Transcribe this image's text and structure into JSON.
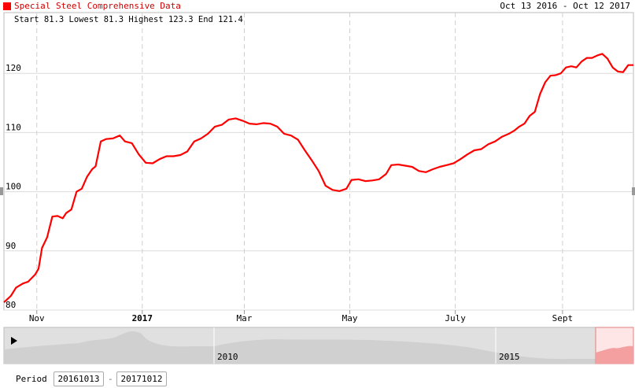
{
  "legend": {
    "label": "Special Steel Comprehensive Data",
    "color": "#ff0000"
  },
  "date_range": "Oct 13 2016 - Oct 12 2017",
  "stats_text": "Start 81.3 Lowest 81.3 Highest 123.3 End 121.4",
  "period": {
    "label": "Period :",
    "start": "20161013",
    "separator": "-",
    "end": "20171012"
  },
  "navigator": {
    "labels": [
      "2010",
      "2015"
    ],
    "play_icon": "play-icon",
    "play_color": "#000000"
  },
  "chart_data": {
    "type": "line",
    "title": "",
    "xlabel": "",
    "ylabel": "",
    "x_range": [
      "2016-10-13",
      "2017-10-12"
    ],
    "ylim": [
      80,
      128
    ],
    "grid": true,
    "y_ticks": [
      {
        "value": 120,
        "label": "120"
      },
      {
        "value": 110,
        "label": "110"
      },
      {
        "value": 100,
        "label": "100"
      },
      {
        "value": 90,
        "label": "90"
      },
      {
        "value": 80,
        "label": "80"
      }
    ],
    "x_ticks": [
      {
        "x": "2016-11-01",
        "label": "Nov",
        "bold": false
      },
      {
        "x": "2017-01-01",
        "label": "2017",
        "bold": true
      },
      {
        "x": "2017-03-01",
        "label": "Mar",
        "bold": false
      },
      {
        "x": "2017-05-01",
        "label": "May",
        "bold": false
      },
      {
        "x": "2017-07-01",
        "label": "July",
        "bold": false
      },
      {
        "x": "2017-09-01",
        "label": "Sept",
        "bold": false
      }
    ],
    "series": [
      {
        "color": "#ff0000",
        "points": [
          [
            "2016-10-13",
            81.3
          ],
          [
            "2016-10-17",
            82.4
          ],
          [
            "2016-10-20",
            83.8
          ],
          [
            "2016-10-24",
            84.5
          ],
          [
            "2016-10-27",
            84.8
          ],
          [
            "2016-10-31",
            86.0
          ],
          [
            "2016-11-02",
            87.0
          ],
          [
            "2016-11-04",
            90.5
          ],
          [
            "2016-11-07",
            92.3
          ],
          [
            "2016-11-10",
            95.8
          ],
          [
            "2016-11-13",
            95.9
          ],
          [
            "2016-11-16",
            95.5
          ],
          [
            "2016-11-18",
            96.4
          ],
          [
            "2016-11-21",
            97.0
          ],
          [
            "2016-11-24",
            100.0
          ],
          [
            "2016-11-27",
            100.5
          ],
          [
            "2016-11-30",
            102.5
          ],
          [
            "2016-12-03",
            103.8
          ],
          [
            "2016-12-05",
            104.3
          ],
          [
            "2016-12-08",
            108.5
          ],
          [
            "2016-12-11",
            108.9
          ],
          [
            "2016-12-15",
            109.0
          ],
          [
            "2016-12-19",
            109.5
          ],
          [
            "2016-12-22",
            108.5
          ],
          [
            "2016-12-26",
            108.2
          ],
          [
            "2016-12-30",
            106.3
          ],
          [
            "2017-01-03",
            104.9
          ],
          [
            "2017-01-07",
            104.8
          ],
          [
            "2017-01-11",
            105.5
          ],
          [
            "2017-01-15",
            106.0
          ],
          [
            "2017-01-19",
            106.0
          ],
          [
            "2017-01-23",
            106.2
          ],
          [
            "2017-01-27",
            106.8
          ],
          [
            "2017-01-31",
            108.5
          ],
          [
            "2017-02-04",
            109.0
          ],
          [
            "2017-02-08",
            109.8
          ],
          [
            "2017-02-12",
            111.0
          ],
          [
            "2017-02-16",
            111.3
          ],
          [
            "2017-02-20",
            112.2
          ],
          [
            "2017-02-24",
            112.4
          ],
          [
            "2017-02-28",
            112.0
          ],
          [
            "2017-03-04",
            111.5
          ],
          [
            "2017-03-08",
            111.4
          ],
          [
            "2017-03-12",
            111.6
          ],
          [
            "2017-03-16",
            111.5
          ],
          [
            "2017-03-20",
            111.0
          ],
          [
            "2017-03-24",
            109.8
          ],
          [
            "2017-03-28",
            109.5
          ],
          [
            "2017-04-01",
            108.8
          ],
          [
            "2017-04-05",
            107.0
          ],
          [
            "2017-04-09",
            105.3
          ],
          [
            "2017-04-13",
            103.5
          ],
          [
            "2017-04-17",
            101.0
          ],
          [
            "2017-04-21",
            100.3
          ],
          [
            "2017-04-25",
            100.1
          ],
          [
            "2017-04-29",
            100.5
          ],
          [
            "2017-05-02",
            102.0
          ],
          [
            "2017-05-06",
            102.1
          ],
          [
            "2017-05-10",
            101.8
          ],
          [
            "2017-05-14",
            101.9
          ],
          [
            "2017-05-18",
            102.1
          ],
          [
            "2017-05-22",
            103.0
          ],
          [
            "2017-05-25",
            104.5
          ],
          [
            "2017-05-29",
            104.6
          ],
          [
            "2017-06-02",
            104.4
          ],
          [
            "2017-06-06",
            104.2
          ],
          [
            "2017-06-10",
            103.5
          ],
          [
            "2017-06-14",
            103.3
          ],
          [
            "2017-06-18",
            103.8
          ],
          [
            "2017-06-22",
            104.2
          ],
          [
            "2017-06-26",
            104.5
          ],
          [
            "2017-06-30",
            104.8
          ],
          [
            "2017-07-04",
            105.5
          ],
          [
            "2017-07-08",
            106.3
          ],
          [
            "2017-07-12",
            107.0
          ],
          [
            "2017-07-16",
            107.2
          ],
          [
            "2017-07-20",
            108.0
          ],
          [
            "2017-07-24",
            108.5
          ],
          [
            "2017-07-28",
            109.3
          ],
          [
            "2017-08-01",
            109.8
          ],
          [
            "2017-08-04",
            110.3
          ],
          [
            "2017-08-07",
            111.0
          ],
          [
            "2017-08-10",
            111.5
          ],
          [
            "2017-08-13",
            112.8
          ],
          [
            "2017-08-16",
            113.5
          ],
          [
            "2017-08-19",
            116.5
          ],
          [
            "2017-08-22",
            118.5
          ],
          [
            "2017-08-25",
            119.6
          ],
          [
            "2017-08-28",
            119.7
          ],
          [
            "2017-08-31",
            120.0
          ],
          [
            "2017-09-03",
            121.0
          ],
          [
            "2017-09-06",
            121.2
          ],
          [
            "2017-09-09",
            121.0
          ],
          [
            "2017-09-12",
            122.0
          ],
          [
            "2017-09-15",
            122.6
          ],
          [
            "2017-09-18",
            122.6
          ],
          [
            "2017-09-21",
            123.0
          ],
          [
            "2017-09-24",
            123.3
          ],
          [
            "2017-09-27",
            122.5
          ],
          [
            "2017-09-30",
            121.0
          ],
          [
            "2017-10-03",
            120.3
          ],
          [
            "2017-10-06",
            120.2
          ],
          [
            "2017-10-09",
            121.4
          ],
          [
            "2017-10-12",
            121.4
          ]
        ]
      }
    ]
  }
}
